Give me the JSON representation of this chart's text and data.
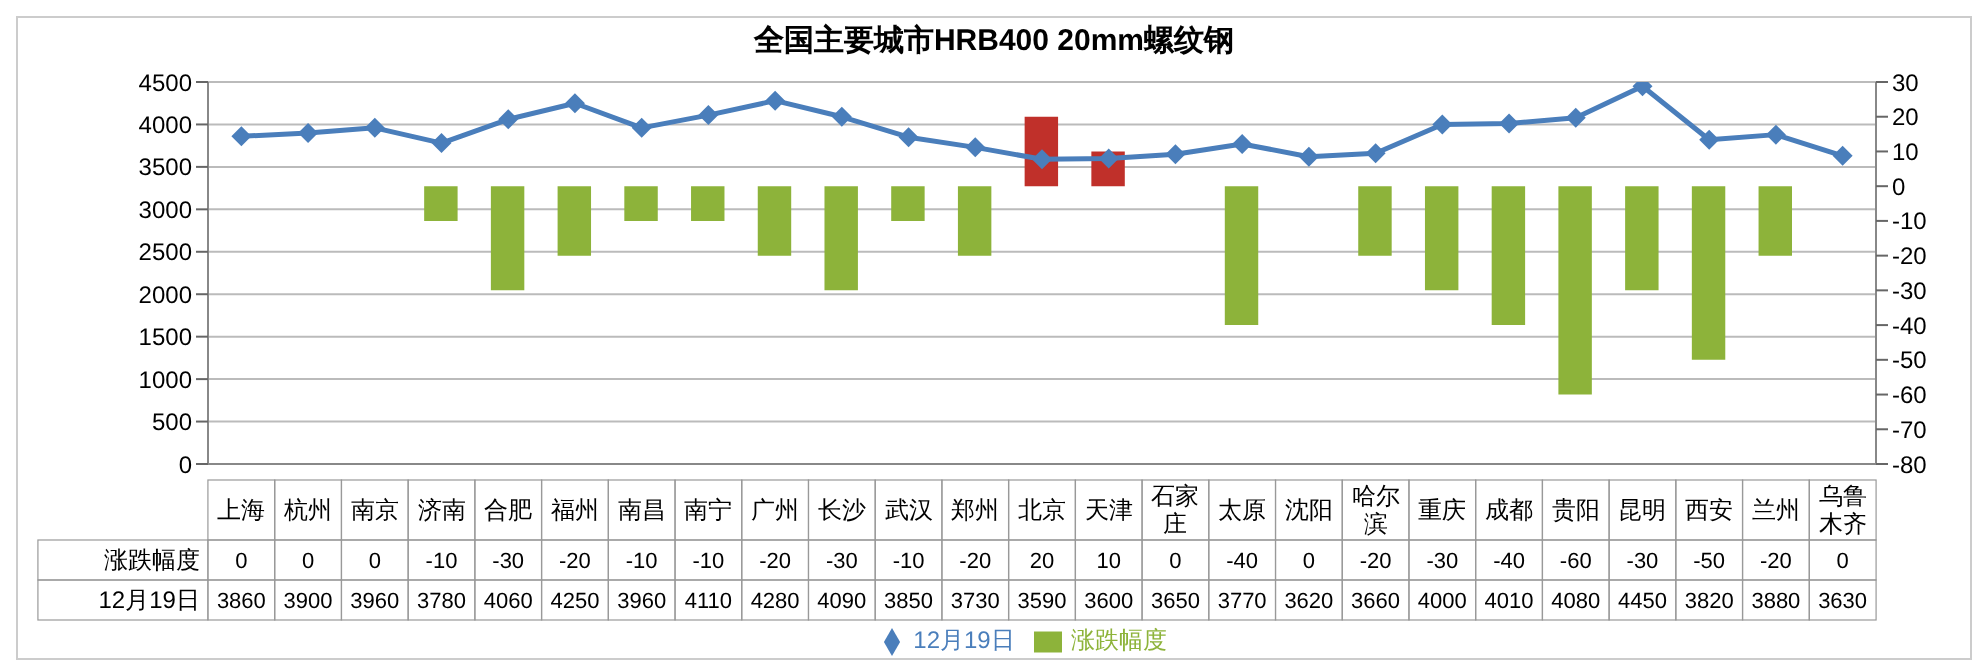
{
  "chart_data": {
    "type": "bar",
    "title": "全国主要城市HRB400 20mm螺纹钢",
    "categories": [
      "上海",
      "杭州",
      "南京",
      "济南",
      "合肥",
      "福州",
      "南昌",
      "南宁",
      "广州",
      "长沙",
      "武汉",
      "郑州",
      "北京",
      "天津",
      "石家庄",
      "太原",
      "沈阳",
      "哈尔滨",
      "重庆",
      "成都",
      "贵阳",
      "昆明",
      "西安",
      "兰州",
      "乌鲁木齐"
    ],
    "series": [
      {
        "name": "涨跌幅度",
        "axis": "y2",
        "color": "#8db33a",
        "colors": [
          "#8db33a",
          "#8db33a",
          "#8db33a",
          "#8db33a",
          "#8db33a",
          "#8db33a",
          "#8db33a",
          "#8db33a",
          "#8db33a",
          "#8db33a",
          "#8db33a",
          "#8db33a",
          "#c0302a",
          "#c0302a",
          "#8db33a",
          "#8db33a",
          "#8db33a",
          "#8db33a",
          "#8db33a",
          "#8db33a",
          "#8db33a",
          "#8db33a",
          "#8db33a",
          "#8db33a",
          "#8db33a"
        ],
        "values": [
          0,
          0,
          0,
          -10,
          -30,
          -20,
          -10,
          -10,
          -20,
          -30,
          -10,
          -20,
          20,
          10,
          0,
          -40,
          0,
          -20,
          -30,
          -40,
          -60,
          -30,
          -50,
          -20,
          0
        ]
      },
      {
        "name": "12月19日",
        "type": "line",
        "color": "#4a7ebb",
        "marker": "diamond",
        "values": [
          3860,
          3900,
          3960,
          3780,
          4060,
          4250,
          3960,
          4110,
          4280,
          4090,
          3850,
          3730,
          3590,
          3600,
          3650,
          3770,
          3620,
          3660,
          4000,
          4010,
          4080,
          4450,
          3820,
          3880,
          3630
        ]
      }
    ],
    "ylim": [
      0,
      4500
    ],
    "yticks": [
      0,
      500,
      1000,
      1500,
      2000,
      2500,
      3000,
      3500,
      4000,
      4500
    ],
    "y2lim": [
      -80,
      30
    ],
    "y2ticks": [
      -80,
      -70,
      -60,
      -50,
      -40,
      -30,
      -20,
      -10,
      0,
      10,
      20,
      30
    ],
    "grid": "y",
    "legend": "bottom",
    "data_labels": true
  }
}
